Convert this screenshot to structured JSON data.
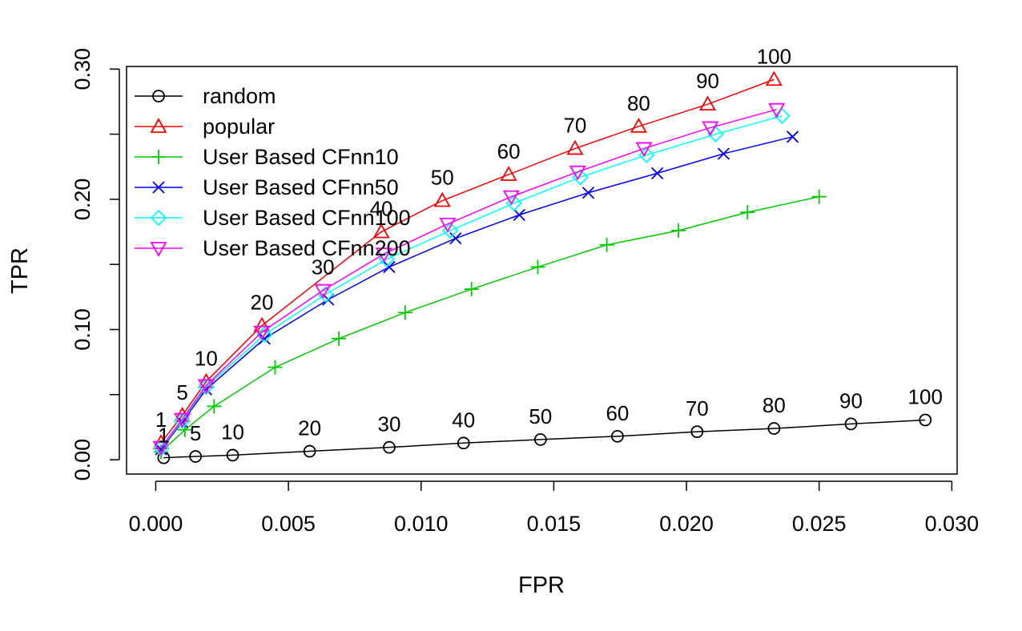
{
  "chart_data": {
    "type": "line",
    "title": "",
    "xlabel": "FPR",
    "ylabel": "TPR",
    "xlim": [
      -0.0011,
      0.0302
    ],
    "ylim": [
      -0.011,
      0.302
    ],
    "xticks": [
      "0.000",
      "0.005",
      "0.010",
      "0.015",
      "0.020",
      "0.025",
      "0.030"
    ],
    "yticks": [
      "0.00",
      "0.10",
      "0.20",
      "0.30"
    ],
    "legend_position": "top-left",
    "grid": false,
    "series": [
      {
        "name": "random",
        "color": "#000000",
        "marker": "circle",
        "x": [
          0.0003,
          0.0015,
          0.0029,
          0.0058,
          0.0088,
          0.0116,
          0.0145,
          0.0174,
          0.0204,
          0.0233,
          0.0262,
          0.029
        ],
        "y": [
          0.0015,
          0.0025,
          0.0035,
          0.0065,
          0.0095,
          0.0128,
          0.0155,
          0.018,
          0.0215,
          0.024,
          0.0275,
          0.0305
        ],
        "labels": [
          "1",
          "5",
          "10",
          "20",
          "30",
          "40",
          "50",
          "60",
          "70",
          "80",
          "90",
          "100"
        ],
        "label_positions": [
          0,
          1,
          1,
          1,
          1,
          1,
          1,
          1,
          1,
          1,
          1,
          1
        ]
      },
      {
        "name": "popular",
        "color": "#ff0000",
        "marker": "triangle-up",
        "x": [
          0.0002,
          0.001,
          0.0019,
          0.004,
          0.0085,
          0.0108,
          0.0133,
          0.0158,
          0.0182,
          0.0208,
          0.0233
        ],
        "y": [
          0.013,
          0.034,
          0.06,
          0.103,
          0.175,
          0.199,
          0.219,
          0.239,
          0.256,
          0.273,
          0.292
        ],
        "labels": [
          "1",
          "5",
          "10",
          "20",
          "40",
          "50",
          "60",
          "70",
          "80",
          "90",
          "100"
        ]
      },
      {
        "name": "User Based CFnn10",
        "color": "#00cd00",
        "marker": "plus",
        "x": [
          0.0002,
          0.0011,
          0.0022,
          0.0045,
          0.0069,
          0.0094,
          0.0119,
          0.0144,
          0.017,
          0.0197,
          0.0223,
          0.025
        ],
        "y": [
          0.006,
          0.023,
          0.041,
          0.071,
          0.093,
          0.113,
          0.131,
          0.148,
          0.165,
          0.176,
          0.19,
          0.202
        ]
      },
      {
        "name": "User Based CFnn50",
        "color": "#0000ff",
        "marker": "x",
        "x": [
          0.0002,
          0.001,
          0.0019,
          0.0041,
          0.0065,
          0.0088,
          0.0113,
          0.0137,
          0.0163,
          0.0189,
          0.0214,
          0.024
        ],
        "y": [
          0.008,
          0.029,
          0.054,
          0.093,
          0.123,
          0.148,
          0.17,
          0.188,
          0.205,
          0.22,
          0.235,
          0.248
        ]
      },
      {
        "name": "User Based CFnn100",
        "color": "#00ffff",
        "marker": "diamond",
        "x": [
          0.0002,
          0.001,
          0.0019,
          0.0041,
          0.0064,
          0.0087,
          0.0111,
          0.0135,
          0.016,
          0.0185,
          0.0211,
          0.0236
        ],
        "y": [
          0.009,
          0.03,
          0.056,
          0.096,
          0.127,
          0.154,
          0.176,
          0.197,
          0.217,
          0.234,
          0.25,
          0.264
        ]
      },
      {
        "name": "User Based CFnn200",
        "color": "#ff00ff",
        "marker": "triangle-down",
        "x": [
          0.0002,
          0.001,
          0.0019,
          0.004,
          0.0063,
          0.0086,
          0.011,
          0.0134,
          0.0159,
          0.0184,
          0.0209,
          0.0234
        ],
        "y": [
          0.0095,
          0.031,
          0.057,
          0.098,
          0.13,
          0.158,
          0.181,
          0.202,
          0.221,
          0.239,
          0.255,
          0.269
        ],
        "labels": [
          "",
          "",
          "",
          "",
          "30",
          "",
          "",
          "",
          "",
          "",
          "",
          ""
        ]
      }
    ]
  }
}
